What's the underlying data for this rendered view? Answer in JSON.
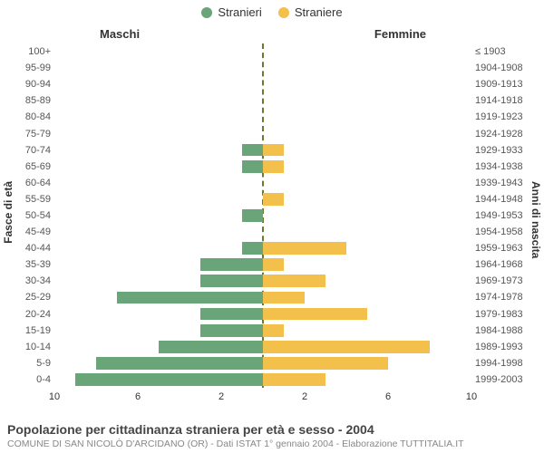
{
  "chart": {
    "type": "population-pyramid",
    "legend": {
      "male_label": "Stranieri",
      "female_label": "Straniere"
    },
    "side_titles": {
      "left": "Maschi",
      "right": "Femmine"
    },
    "axis_titles": {
      "left": "Fasce di età",
      "right": "Anni di nascita"
    },
    "colors": {
      "male": "#6aa57a",
      "female": "#f3c04b",
      "centerline": "#6b7a2e",
      "background": "#ffffff",
      "tick_text": "#333333",
      "label_text": "#555555",
      "footer_title": "#444444",
      "footer_sub": "#888888"
    },
    "fontsize": {
      "legend": 13,
      "side_title": 13,
      "axis_title": 12,
      "row_label": 11,
      "tick": 11,
      "footer_title": 14,
      "footer_sub": 10.5
    },
    "x_axis": {
      "max": 10,
      "ticks": [
        10,
        6,
        2,
        2,
        6,
        10
      ]
    },
    "rows": [
      {
        "age": "100+",
        "cohort": "≤ 1903",
        "m": 0,
        "f": 0
      },
      {
        "age": "95-99",
        "cohort": "1904-1908",
        "m": 0,
        "f": 0
      },
      {
        "age": "90-94",
        "cohort": "1909-1913",
        "m": 0,
        "f": 0
      },
      {
        "age": "85-89",
        "cohort": "1914-1918",
        "m": 0,
        "f": 0
      },
      {
        "age": "80-84",
        "cohort": "1919-1923",
        "m": 0,
        "f": 0
      },
      {
        "age": "75-79",
        "cohort": "1924-1928",
        "m": 0,
        "f": 0
      },
      {
        "age": "70-74",
        "cohort": "1929-1933",
        "m": 1,
        "f": 1
      },
      {
        "age": "65-69",
        "cohort": "1934-1938",
        "m": 1,
        "f": 1
      },
      {
        "age": "60-64",
        "cohort": "1939-1943",
        "m": 0,
        "f": 0
      },
      {
        "age": "55-59",
        "cohort": "1944-1948",
        "m": 0,
        "f": 1
      },
      {
        "age": "50-54",
        "cohort": "1949-1953",
        "m": 1,
        "f": 0
      },
      {
        "age": "45-49",
        "cohort": "1954-1958",
        "m": 0,
        "f": 0
      },
      {
        "age": "40-44",
        "cohort": "1959-1963",
        "m": 1,
        "f": 4
      },
      {
        "age": "35-39",
        "cohort": "1964-1968",
        "m": 3,
        "f": 1
      },
      {
        "age": "30-34",
        "cohort": "1969-1973",
        "m": 3,
        "f": 3
      },
      {
        "age": "25-29",
        "cohort": "1974-1978",
        "m": 7,
        "f": 2
      },
      {
        "age": "20-24",
        "cohort": "1979-1983",
        "m": 3,
        "f": 5
      },
      {
        "age": "15-19",
        "cohort": "1984-1988",
        "m": 3,
        "f": 1
      },
      {
        "age": "10-14",
        "cohort": "1989-1993",
        "m": 5,
        "f": 8
      },
      {
        "age": "5-9",
        "cohort": "1994-1998",
        "m": 8,
        "f": 6
      },
      {
        "age": "0-4",
        "cohort": "1999-2003",
        "m": 9,
        "f": 3
      }
    ],
    "footer": {
      "title": "Popolazione per cittadinanza straniera per età e sesso - 2004",
      "sub": "COMUNE DI SAN NICOLÒ D'ARCIDANO (OR) - Dati ISTAT 1° gennaio 2004 - Elaborazione TUTTITALIA.IT"
    }
  }
}
